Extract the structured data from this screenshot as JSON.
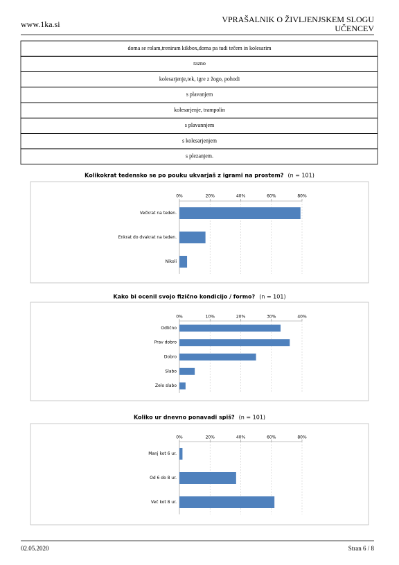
{
  "header": {
    "site": "www.1ka.si",
    "title_lines": [
      "VPRAŠALNIK O ŽIVLJENJSKEM SLOGU",
      "UČENCEV"
    ]
  },
  "table": {
    "rows": [
      "doma se rolam,treniram kikbox,doma pa tudi tečem in kolesarim",
      "razno",
      "kolesarjenje,tek, igre z žogo, pohodi",
      "s plavanjem",
      "kolesarjenje, trampolin",
      "s plavannjem",
      "s kolesarjenjem",
      "s plezanjem."
    ]
  },
  "chart_data": [
    {
      "type": "barh",
      "title": "Kolikokrat tedensko se po pouku ukvarjaš z igrami na prostem?",
      "note": "(n = 101)",
      "categories": [
        "Večkrat na teden.",
        "Enkrat do dvakrat na teden.",
        "Nikoli"
      ],
      "values": [
        79,
        17,
        5
      ],
      "color": "#4f81bd",
      "xlim": [
        0,
        80
      ],
      "xticks": [
        {
          "value": 0,
          "label": "0%"
        },
        {
          "value": 20,
          "label": "20%"
        },
        {
          "value": 40,
          "label": "40%"
        },
        {
          "value": 60,
          "label": "60%"
        },
        {
          "value": 80,
          "label": "80%"
        }
      ],
      "grid": true
    },
    {
      "type": "barh",
      "title": "Kako bi ocenil svojo fizično kondicijo / formo?",
      "note": "(n = 101)",
      "categories": [
        "Odlično",
        "Prav dobro",
        "Dobro",
        "Slabo",
        "Zelo slabo"
      ],
      "values": [
        33,
        36,
        25,
        5,
        2
      ],
      "color": "#4f81bd",
      "xlim": [
        0,
        40
      ],
      "xticks": [
        {
          "value": 0,
          "label": "0%"
        },
        {
          "value": 10,
          "label": "10%"
        },
        {
          "value": 20,
          "label": "20%"
        },
        {
          "value": 30,
          "label": "30%"
        },
        {
          "value": 40,
          "label": "40%"
        }
      ],
      "grid": true
    },
    {
      "type": "barh",
      "title": "Koliko ur dnevno ponavadi spiš?",
      "note": "(n = 101)",
      "categories": [
        "Manj kot 6 ur.",
        "Od 6 do 8 ur.",
        "Več kot 8 ur."
      ],
      "values": [
        2,
        37,
        62
      ],
      "color": "#4f81bd",
      "xlim": [
        0,
        80
      ],
      "xticks": [
        {
          "value": 0,
          "label": "0%"
        },
        {
          "value": 20,
          "label": "20%"
        },
        {
          "value": 40,
          "label": "40%"
        },
        {
          "value": 60,
          "label": "60%"
        },
        {
          "value": 80,
          "label": "80%"
        }
      ],
      "grid": true
    }
  ],
  "footer": {
    "date": "02.05.2020",
    "page": "Stran 6 / 8"
  }
}
